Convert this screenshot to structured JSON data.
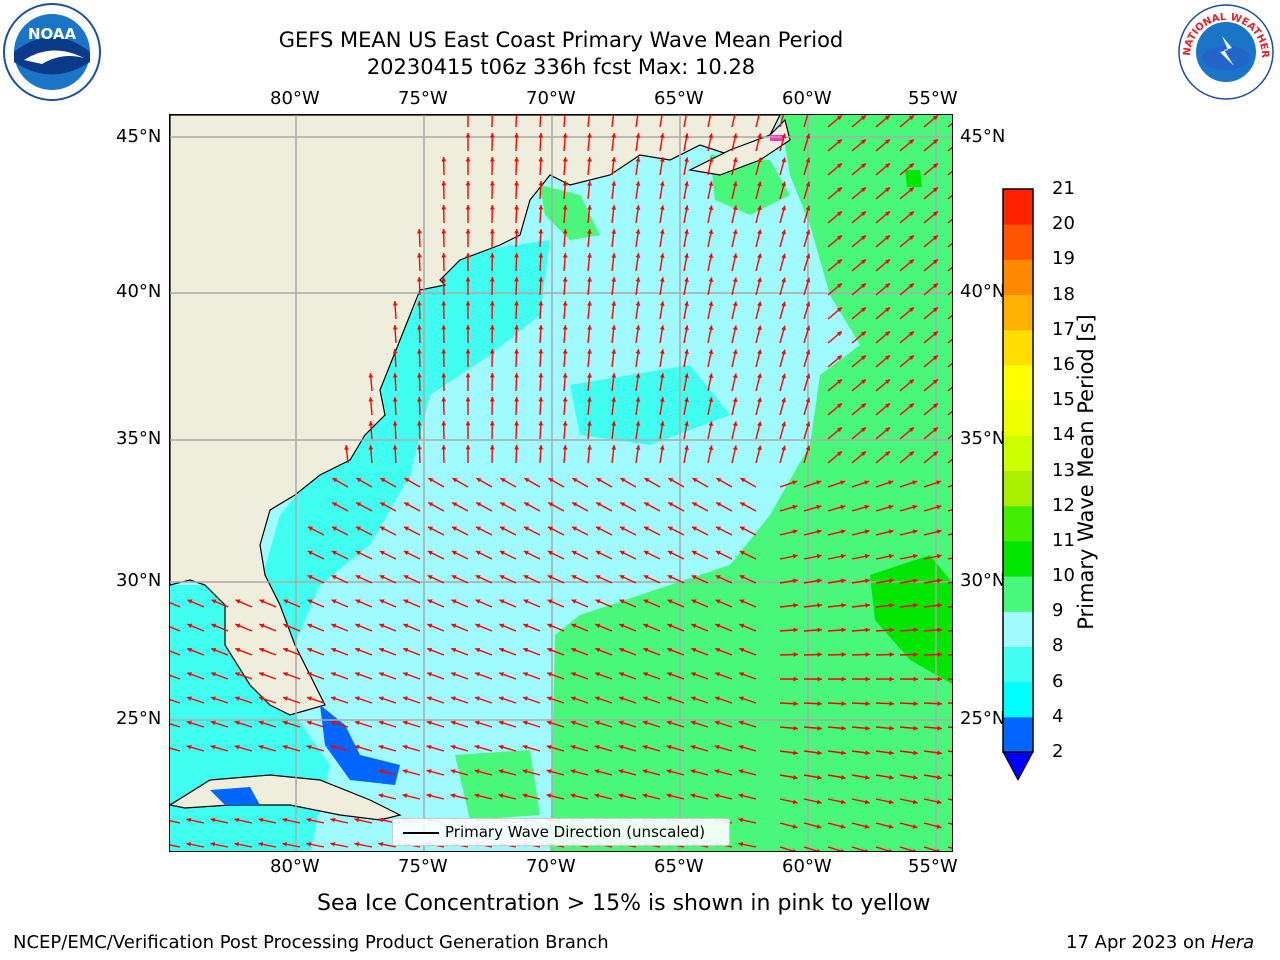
{
  "title": {
    "line1": "GEFS MEAN US East Coast Primary Wave Mean Period",
    "line2": "20230415 t06z 336h fcst   Max: 10.28"
  },
  "logos": {
    "left": {
      "icon": "noaa-logo-icon",
      "text": "NOAA"
    },
    "right": {
      "icon": "nws-logo-icon",
      "arc_text": "NATIONAL WEATHER SERVICE"
    }
  },
  "axes": {
    "lon_top": [
      "80°W",
      "75°W",
      "70°W",
      "65°W",
      "60°W",
      "55°W"
    ],
    "lon_bottom": [
      "80°W",
      "75°W",
      "70°W",
      "65°W",
      "60°W",
      "55°W"
    ],
    "lat_left": [
      "45°N",
      "40°N",
      "35°N",
      "30°N",
      "25°N"
    ],
    "lat_right": [
      "45°N",
      "40°N",
      "35°N",
      "30°N",
      "25°N"
    ]
  },
  "legend": {
    "label": "Primary Wave Direction (unscaled)"
  },
  "colorbar": {
    "label": "Primary Wave Mean Period [s]",
    "ticks": [
      "2",
      "4",
      "6",
      "8",
      "9",
      "10",
      "11",
      "12",
      "13",
      "14",
      "15",
      "16",
      "17",
      "18",
      "19",
      "20",
      "21"
    ],
    "colors": [
      "#0066ff",
      "#00ffff",
      "#40fff0",
      "#9ffbff",
      "#49f77a",
      "#00e600",
      "#44ee00",
      "#aaee00",
      "#ccff00",
      "#eeff00",
      "#ffff00",
      "#ffdd00",
      "#ffb000",
      "#ff8800",
      "#ff5500",
      "#ff2200"
    ],
    "extend_color": "#0000ff"
  },
  "colors": {
    "land": "#efeedc",
    "ocean_8_9": "#9ffbff",
    "ocean_6_8": "#40fff0",
    "ocean_4_6": "#00ffff",
    "ocean_9_10": "#49f77a",
    "ocean_10_11": "#00e600",
    "ocean_2_4": "#0066ff",
    "arrow": "#ff0000",
    "grid": "#aaaaaa"
  },
  "annotation": "Sea Ice Concentration > 15% is shown in pink to yellow",
  "footer": {
    "left": "NCEP/EMC/Verification Post Processing Product Generation Branch",
    "right_date": "17 Apr 2023 on ",
    "right_machine": "Hera"
  }
}
